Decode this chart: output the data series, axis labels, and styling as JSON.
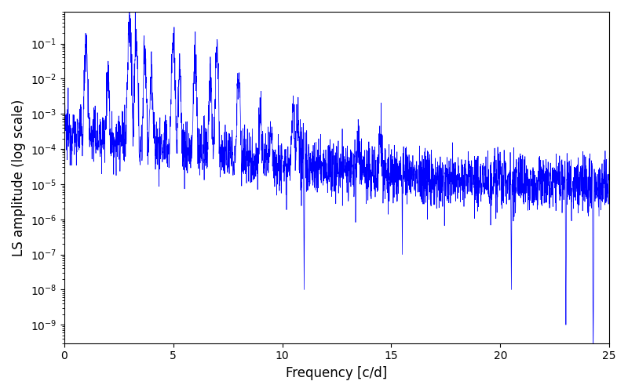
{
  "title": "",
  "xlabel": "Frequency [c/d]",
  "ylabel": "LS amplitude (log scale)",
  "xlim": [
    0,
    25
  ],
  "ylim": [
    3e-10,
    0.8
  ],
  "line_color": "#0000ff",
  "line_width": 0.5,
  "background_color": "#ffffff",
  "freq_min": 0.0,
  "freq_max": 25.0,
  "n_points": 3000,
  "seed": 12345
}
